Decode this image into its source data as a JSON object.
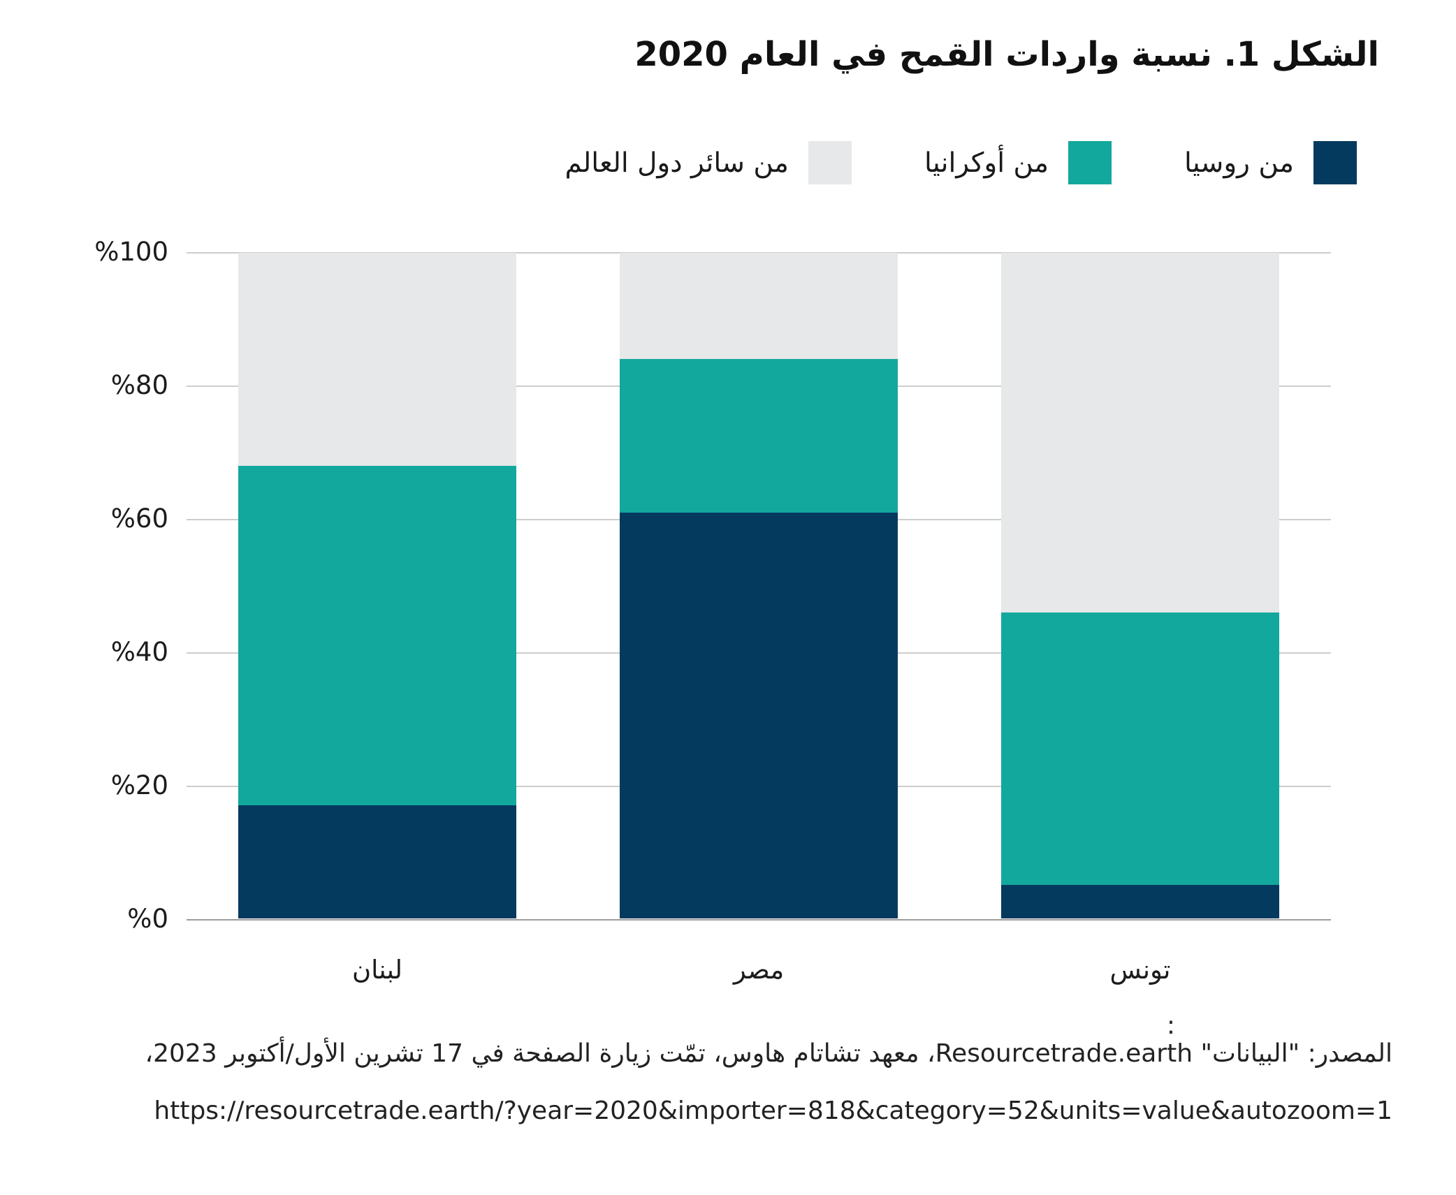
{
  "title": "الشكل 1. نسبة واردات القمح في العام 2020",
  "chart_data": {
    "type": "bar",
    "stacked": true,
    "direction": "rtl",
    "title": "الشكل 1. نسبة واردات القمح في العام 2020",
    "categories": [
      "لبنان",
      "مصر",
      "تونس"
    ],
    "series": [
      {
        "name": "من روسيا",
        "color": "#053a5f",
        "values": [
          17,
          61,
          5
        ]
      },
      {
        "name": "من أوكرانيا",
        "color": "#12a89d",
        "values": [
          51,
          23,
          41
        ]
      },
      {
        "name": "من سائر دول العالم",
        "color": "#e6e8ea",
        "values": [
          32,
          16,
          54
        ]
      }
    ],
    "ylim": [
      0,
      100
    ],
    "yticks": [
      {
        "value": 0,
        "label": "%0"
      },
      {
        "value": 20,
        "label": "%20"
      },
      {
        "value": 40,
        "label": "%40"
      },
      {
        "value": 60,
        "label": "%60"
      },
      {
        "value": 80,
        "label": "%80"
      },
      {
        "value": 100,
        "label": "%100"
      }
    ],
    "grid": true,
    "legend_position": "top-right"
  },
  "source": {
    "colon": ":",
    "line1": "المصدر: \"البيانات\" Resourcetrade.earth، معهد تشاتام هاوس، تمّت زيارة الصفحة في 17 تشرين الأول/أكتوبر 2023،",
    "url": "https://resourcetrade.earth/?year=2020&importer=818&category=52&units=value&autozoom=1"
  }
}
